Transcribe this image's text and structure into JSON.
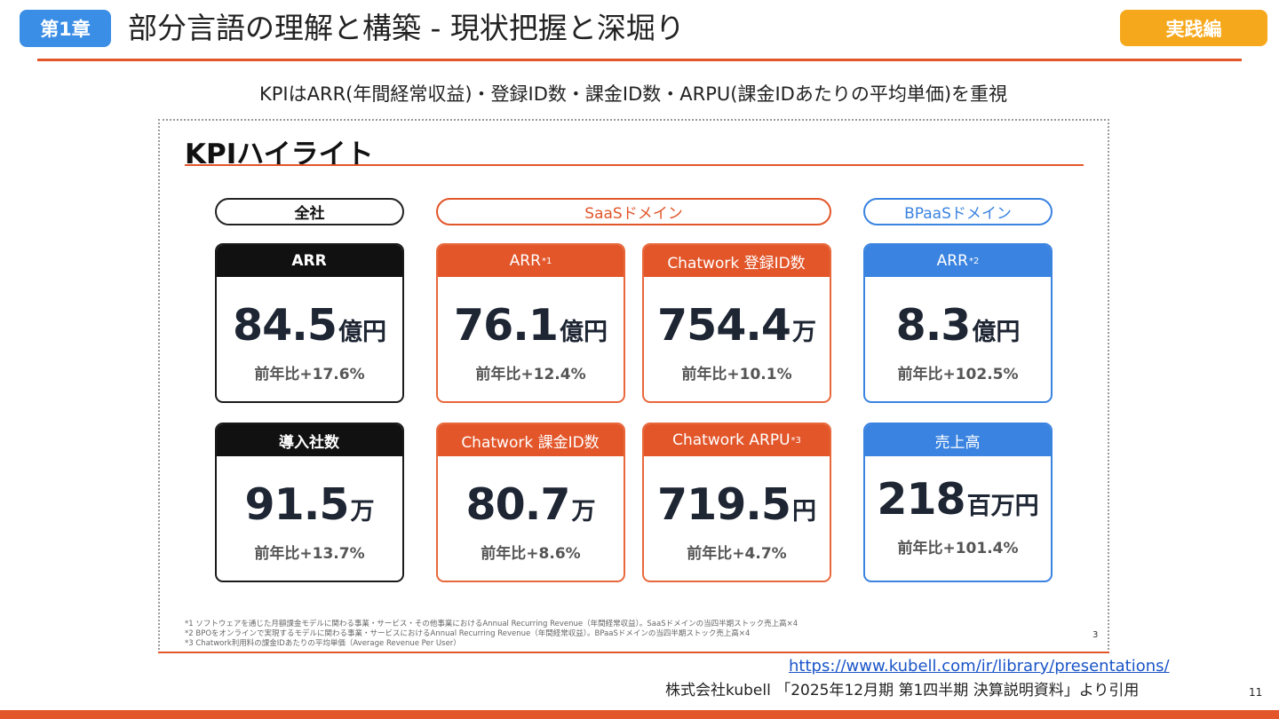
{
  "header": {
    "chapter_badge": "第1章",
    "title": "部分言語の理解と構築 - 現状把握と深堀り",
    "practice_badge": "実践編",
    "subtitle": "KPIはARR(年間経常収益)・登録ID数・課金ID数・ARPU(課金IDあたりの平均単価)を重視"
  },
  "slide": {
    "heading": "KPIハイライト",
    "segments": {
      "company": "全社",
      "saas": "SaaSドメイン",
      "bpaas": "BPaaSドメイン"
    },
    "cards": [
      {
        "label": "ARR",
        "sup": "",
        "value": "84.5",
        "unit": "億円",
        "yoy": "前年比+17.6%"
      },
      {
        "label": "導入社数",
        "sup": "",
        "value": "91.5",
        "unit": "万",
        "yoy": "前年比+13.7%"
      },
      {
        "label": "ARR",
        "sup": "*1",
        "value": "76.1",
        "unit": "億円",
        "yoy": "前年比+12.4%"
      },
      {
        "label": "Chatwork 課金ID数",
        "sup": "",
        "value": "80.7",
        "unit": "万",
        "yoy": "前年比+8.6%"
      },
      {
        "label": "Chatwork 登録ID数",
        "sup": "",
        "value": "754.4",
        "unit": "万",
        "yoy": "前年比+10.1%"
      },
      {
        "label": "Chatwork ARPU",
        "sup": "*3",
        "value": "719.5",
        "unit": "円",
        "yoy": "前年比+4.7%"
      },
      {
        "label": "ARR",
        "sup": "*2",
        "value": "8.3",
        "unit": "億円",
        "yoy": "前年比+102.5%"
      },
      {
        "label": "売上高",
        "sup": "",
        "value": "218",
        "unit": "百万円",
        "yoy": "前年比+101.4%"
      }
    ],
    "footnotes": [
      "*1 ソフトウェアを通じた月額課金モデルに関わる事業・サービス・その他事業におけるAnnual Recurring Revenue（年間経常収益）。SaaSドメインの当四半期ストック売上高×4",
      "*2 BPOをオンラインで実現するモデルに関わる事業・サービスにおけるAnnual Recurring Revenue（年間経常収益）。BPaaSドメインの当四半期ストック売上高×4",
      "*3 Chatwork利用料の課金IDあたりの平均単価（Average Revenue Per User）"
    ],
    "page_number": "3"
  },
  "source": {
    "url": "https://www.kubell.com/ir/library/presentations/",
    "citation": "株式会社kubell 「2025年12月期 第1四半期 決算説明資料」より引用"
  },
  "page_number": "11",
  "colors": {
    "accent_orange": "#e2562a",
    "badge_blue": "#3a8ee6",
    "badge_yellow": "#f6a81c",
    "bpaas_blue": "#3a83e0"
  }
}
